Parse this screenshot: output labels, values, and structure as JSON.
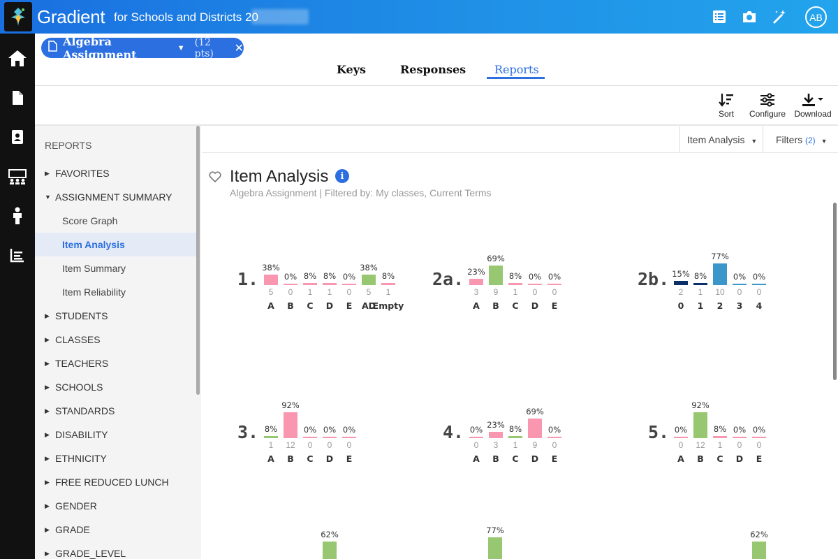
{
  "app": {
    "brand": "Gradient",
    "tagline": "for Schools and Districts 20",
    "avatar_initials": "AB"
  },
  "colors": {
    "accent": "#2b6fe0",
    "correct": "#97c770",
    "incorrect": "#f996b0",
    "dark_navy": "#0b3068",
    "teal_blue": "#3b97c9"
  },
  "assignment_chip": {
    "title": "Algebra Assignment",
    "points": "(12 pts)"
  },
  "tabs": [
    {
      "label": "Keys"
    },
    {
      "label": "Responses"
    },
    {
      "label": "Reports"
    }
  ],
  "toolbar": {
    "sort": "Sort",
    "configure": "Configure",
    "download": "Download"
  },
  "sidebar": {
    "heading": "REPORTS",
    "sections": [
      "FAVORITES",
      "ASSIGNMENT SUMMARY",
      "STUDENTS",
      "CLASSES",
      "TEACHERS",
      "SCHOOLS",
      "STANDARDS",
      "DISABILITY",
      "ETHNICITY",
      "FREE REDUCED LUNCH",
      "GENDER",
      "GRADE",
      "GRADE_LEVEL"
    ],
    "sub_items": [
      "Score Graph",
      "Item Analysis",
      "Item Summary",
      "Item Reliability"
    ]
  },
  "content": {
    "report_dropdown": "Item Analysis",
    "filters_label": "Filters",
    "filters_count": "(2)",
    "title": "Item Analysis",
    "subtitle": "Algebra Assignment | Filtered by: My classes, Current Terms"
  },
  "chart_data": [
    {
      "type": "bar",
      "question": "1.",
      "categories": [
        "A",
        "B",
        "C",
        "D",
        "E",
        "AD",
        "Empty"
      ],
      "percents": [
        "38%",
        "0%",
        "8%",
        "8%",
        "0%",
        "38%",
        "8%"
      ],
      "values": [
        38,
        0,
        8,
        8,
        0,
        38,
        8
      ],
      "counts": [
        5,
        0,
        1,
        1,
        0,
        5,
        1
      ],
      "correct": [
        false,
        false,
        false,
        false,
        false,
        true,
        false
      ]
    },
    {
      "type": "bar",
      "question": "2a.",
      "categories": [
        "A",
        "B",
        "C",
        "D",
        "E"
      ],
      "percents": [
        "23%",
        "69%",
        "8%",
        "0%",
        "0%"
      ],
      "values": [
        23,
        69,
        8,
        0,
        0
      ],
      "counts": [
        3,
        9,
        1,
        0,
        0
      ],
      "correct": [
        false,
        true,
        false,
        false,
        false
      ]
    },
    {
      "type": "bar",
      "question": "2b.",
      "categories": [
        "0",
        "1",
        "2",
        "3",
        "4"
      ],
      "percents": [
        "15%",
        "8%",
        "77%",
        "0%",
        "0%"
      ],
      "values": [
        15,
        8,
        77,
        0,
        0
      ],
      "counts": [
        2,
        1,
        10,
        0,
        0
      ],
      "scale": true
    },
    {
      "type": "bar",
      "question": "3.",
      "categories": [
        "A",
        "B",
        "C",
        "D",
        "E"
      ],
      "percents": [
        "8%",
        "92%",
        "0%",
        "0%",
        "0%"
      ],
      "values": [
        8,
        92,
        0,
        0,
        0
      ],
      "counts": [
        1,
        12,
        0,
        0,
        0
      ],
      "correct": [
        true,
        false,
        false,
        false,
        false
      ]
    },
    {
      "type": "bar",
      "question": "4.",
      "categories": [
        "A",
        "B",
        "C",
        "D",
        "E"
      ],
      "percents": [
        "0%",
        "23%",
        "8%",
        "69%",
        "0%"
      ],
      "values": [
        0,
        23,
        8,
        69,
        0
      ],
      "counts": [
        0,
        3,
        1,
        9,
        0
      ],
      "correct": [
        false,
        false,
        true,
        false,
        false
      ]
    },
    {
      "type": "bar",
      "question": "5.",
      "categories": [
        "A",
        "B",
        "C",
        "D",
        "E"
      ],
      "percents": [
        "0%",
        "92%",
        "8%",
        "0%",
        "0%"
      ],
      "values": [
        0,
        92,
        8,
        0,
        0
      ],
      "counts": [
        0,
        12,
        1,
        0,
        0
      ],
      "correct": [
        false,
        true,
        false,
        false,
        false
      ]
    },
    {
      "type": "bar",
      "partial": true,
      "percents": [
        "62%"
      ],
      "values": [
        62
      ]
    },
    {
      "type": "bar",
      "partial": true,
      "percents": [
        "77%"
      ],
      "values": [
        77
      ]
    },
    {
      "type": "bar",
      "partial": true,
      "percents": [
        "62%"
      ],
      "values": [
        62
      ]
    }
  ]
}
